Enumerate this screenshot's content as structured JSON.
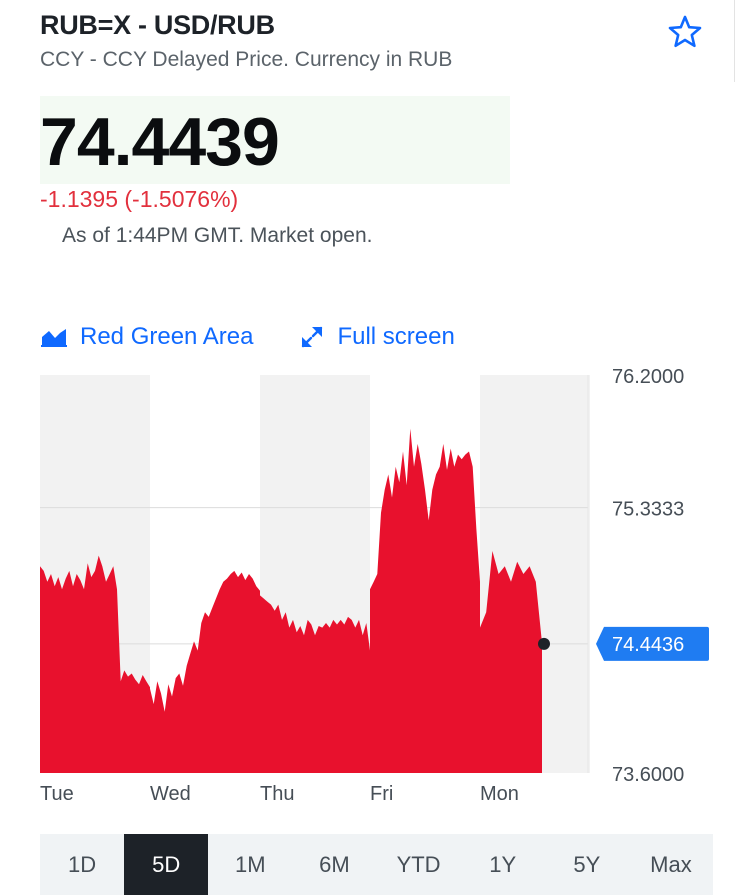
{
  "header": {
    "title": "RUB=X - USD/RUB",
    "subtitle": "CCY - CCY Delayed Price. Currency in RUB"
  },
  "quote": {
    "price": "74.4439",
    "change": "-1.1395 (-1.5076%)",
    "as_of": "As of 1:44PM GMT. Market open."
  },
  "tools": {
    "chart_type": "Red Green Area",
    "full_screen": "Full screen"
  },
  "colors": {
    "accent": "#0f69ff",
    "negative": "#e2303d",
    "area_fill": "#e8112d",
    "price_label_bg": "#1f7cf2"
  },
  "chart_data": {
    "type": "area",
    "y_ticks": [
      "76.2000",
      "75.3333",
      "73.6000"
    ],
    "ylim": [
      73.6,
      76.2
    ],
    "x_labels": [
      "Tue",
      "Wed",
      "Thu",
      "Fri",
      "Mon"
    ],
    "current_price_label": "74.4436",
    "current_value": 74.4436,
    "reference_value": 74.4439,
    "grid": "horizontal",
    "series": [
      {
        "day": "Tue",
        "values": [
          74.95,
          74.92,
          74.85,
          74.9,
          74.82,
          74.88,
          74.8,
          74.87,
          74.92,
          74.82,
          74.9,
          74.86,
          74.8,
          74.97,
          74.88,
          74.92,
          75.02,
          74.95,
          74.85,
          74.9,
          74.95,
          74.8,
          74.2,
          74.27,
          74.23,
          74.25,
          74.21,
          74.18,
          74.24,
          74.2,
          74.16
        ]
      },
      {
        "day": "Wed",
        "values": [
          74.15,
          74.05,
          74.2,
          74.12,
          74.0,
          74.18,
          74.1,
          74.22,
          74.25,
          74.17,
          74.3,
          74.38,
          74.46,
          74.4,
          74.58,
          74.65,
          74.62,
          74.68,
          74.74,
          74.8,
          74.85,
          74.87,
          74.9,
          74.92,
          74.88,
          74.91,
          74.86,
          74.9,
          74.87,
          74.82,
          74.79
        ]
      },
      {
        "day": "Thu",
        "values": [
          74.76,
          74.74,
          74.72,
          74.7,
          74.66,
          74.7,
          74.6,
          74.65,
          74.55,
          74.6,
          74.52,
          74.56,
          74.5,
          74.6,
          74.57,
          74.5,
          74.56,
          74.55,
          74.58,
          74.55,
          74.6,
          74.57,
          74.6,
          74.57,
          74.62,
          74.6,
          74.55,
          74.6,
          74.5,
          74.58,
          74.4
        ]
      },
      {
        "day": "Fri",
        "values": [
          74.8,
          74.85,
          74.9,
          75.3,
          75.45,
          75.55,
          75.4,
          75.6,
          75.5,
          75.7,
          75.48,
          75.85,
          75.6,
          75.75,
          75.62,
          75.45,
          75.25,
          75.45,
          75.55,
          75.6,
          75.75,
          75.58,
          75.72,
          75.6,
          75.68,
          75.65,
          75.68,
          75.7,
          75.6,
          75.2,
          74.85
        ]
      },
      {
        "day": "Mon",
        "values": [
          74.55,
          74.65,
          75.05,
          74.9,
          74.95,
          74.85,
          74.98,
          74.9,
          74.95,
          74.85,
          74.45
        ]
      }
    ]
  }
}
